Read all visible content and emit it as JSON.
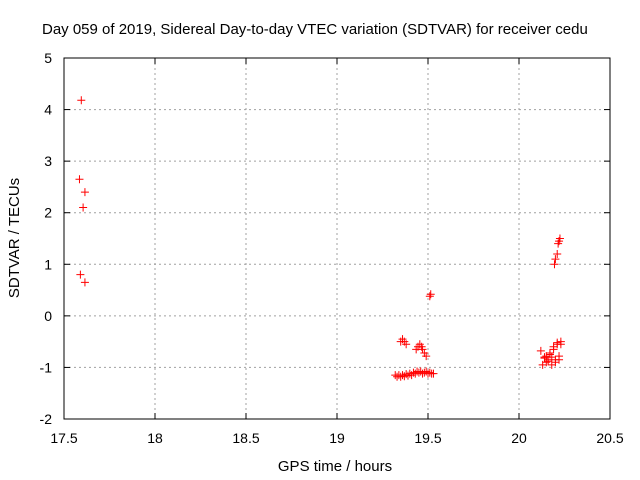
{
  "chart_data": {
    "type": "scatter",
    "title": "Day 059 of 2019, Sidereal Day-to-day VTEC variation (SDTVAR) for receiver cedu",
    "xlabel": "GPS time / hours",
    "ylabel": "SDTVAR / TECUs",
    "xlim": [
      17.5,
      20.5
    ],
    "ylim": [
      -2,
      5
    ],
    "xticks": [
      17.5,
      18,
      18.5,
      19,
      19.5,
      20,
      20.5
    ],
    "xtick_labels": [
      "17.5",
      "18",
      "18.5",
      "19",
      "19.5",
      "20",
      "20.5"
    ],
    "yticks": [
      -2,
      -1,
      0,
      1,
      2,
      3,
      4,
      5
    ],
    "ytick_labels": [
      "-2",
      "-1",
      "0",
      "1",
      "2",
      "3",
      "4",
      "5"
    ],
    "grid": true,
    "marker": "plus",
    "color": "#ff0000",
    "series": [
      {
        "x": [
          17.585,
          17.595,
          17.605,
          17.615,
          17.59,
          17.615,
          19.32,
          19.33,
          19.34,
          19.35,
          19.36,
          19.37,
          19.38,
          19.39,
          19.4,
          19.41,
          19.42,
          19.43,
          19.44,
          19.45,
          19.46,
          19.47,
          19.48,
          19.49,
          19.5,
          19.51,
          19.52,
          19.53,
          19.35,
          19.36,
          19.37,
          19.38,
          19.435,
          19.445,
          19.455,
          19.465,
          19.47,
          19.48,
          19.49,
          19.51,
          19.515,
          20.12,
          20.13,
          20.14,
          20.15,
          20.16,
          20.17,
          20.18,
          20.19,
          20.2,
          20.21,
          20.22,
          20.23,
          20.14,
          20.15,
          20.16,
          20.17,
          20.18,
          20.19,
          20.2,
          20.21,
          20.22,
          20.23,
          20.195,
          20.2,
          20.21,
          20.215,
          20.22,
          20.225
        ],
        "y": [
          2.65,
          4.18,
          2.1,
          2.4,
          0.8,
          0.65,
          -1.15,
          -1.18,
          -1.15,
          -1.18,
          -1.15,
          -1.17,
          -1.13,
          -1.16,
          -1.12,
          -1.15,
          -1.1,
          -1.12,
          -1.08,
          -1.1,
          -1.08,
          -1.12,
          -1.1,
          -1.08,
          -1.12,
          -1.1,
          -1.12,
          -1.12,
          -0.5,
          -0.45,
          -0.5,
          -0.55,
          -0.65,
          -0.6,
          -0.55,
          -0.6,
          -0.65,
          -0.72,
          -0.78,
          0.38,
          0.42,
          -0.68,
          -0.95,
          -0.8,
          -0.9,
          -0.85,
          -0.75,
          -0.95,
          -0.65,
          -0.9,
          -0.55,
          -0.85,
          -0.5,
          -0.82,
          -0.78,
          -0.88,
          -0.72,
          -0.8,
          -0.6,
          -0.85,
          -0.52,
          -0.78,
          -0.55,
          1.0,
          1.1,
          1.2,
          1.4,
          1.45,
          1.5
        ]
      }
    ]
  }
}
